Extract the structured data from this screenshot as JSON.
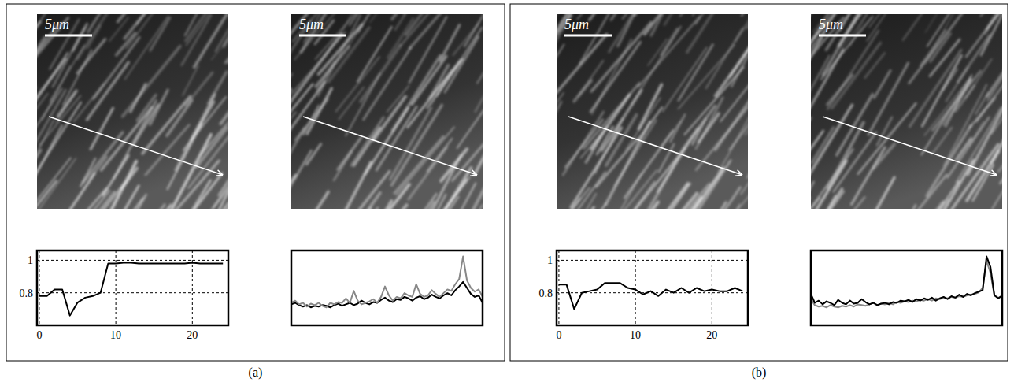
{
  "panels": [
    {
      "label": "(a)",
      "images": [
        {
          "scale_bar": "5μm"
        },
        {
          "scale_bar": "5μm"
        }
      ]
    },
    {
      "label": "(b)",
      "images": [
        {
          "scale_bar": "5μm"
        },
        {
          "scale_bar": "5μm"
        }
      ]
    }
  ],
  "chart_data": [
    {
      "type": "line",
      "xlim": [
        -0.3,
        24.7
      ],
      "ylim": [
        0.6,
        1.06
      ],
      "xticks": [
        0,
        10,
        20
      ],
      "yticks": [
        0.8,
        1
      ],
      "grid": true,
      "x": [
        0,
        1,
        2,
        3,
        4,
        5,
        6,
        7,
        8,
        9,
        10,
        11,
        12,
        13,
        14,
        15,
        16,
        17,
        18,
        19,
        20,
        21,
        22,
        23,
        24
      ],
      "series": [
        {
          "color": "#000000",
          "values": [
            0.78,
            0.78,
            0.82,
            0.82,
            0.66,
            0.74,
            0.77,
            0.78,
            0.8,
            0.98,
            0.98,
            0.985,
            0.985,
            0.98,
            0.98,
            0.98,
            0.98,
            0.98,
            0.98,
            0.98,
            0.985,
            0.98,
            0.98,
            0.98,
            0.98
          ]
        }
      ]
    },
    {
      "type": "line",
      "xlim": [
        0,
        49
      ],
      "ylim": [
        0,
        1
      ],
      "tick_labels": false,
      "grid": false,
      "x": [
        0,
        1,
        2,
        3,
        4,
        5,
        6,
        7,
        8,
        9,
        10,
        11,
        12,
        13,
        14,
        15,
        16,
        17,
        18,
        19,
        20,
        21,
        22,
        23,
        24,
        25,
        26,
        27,
        28,
        29,
        30,
        31,
        32,
        33,
        34,
        35,
        36,
        37,
        38,
        39,
        40,
        41,
        42,
        43,
        44,
        45,
        46,
        47,
        48,
        49
      ],
      "series": [
        {
          "color": "#000000",
          "values": [
            0.28,
            0.3,
            0.27,
            0.25,
            0.27,
            0.24,
            0.26,
            0.25,
            0.27,
            0.26,
            0.24,
            0.27,
            0.29,
            0.26,
            0.28,
            0.3,
            0.27,
            0.29,
            0.33,
            0.3,
            0.28,
            0.31,
            0.3,
            0.34,
            0.37,
            0.33,
            0.31,
            0.35,
            0.34,
            0.38,
            0.36,
            0.33,
            0.37,
            0.39,
            0.35,
            0.37,
            0.41,
            0.38,
            0.36,
            0.4,
            0.43,
            0.4,
            0.47,
            0.52,
            0.58,
            0.5,
            0.42,
            0.38,
            0.4,
            0.3
          ]
        },
        {
          "color": "#888888",
          "values": [
            0.3,
            0.33,
            0.28,
            0.3,
            0.25,
            0.29,
            0.27,
            0.3,
            0.26,
            0.24,
            0.3,
            0.28,
            0.31,
            0.3,
            0.36,
            0.3,
            0.46,
            0.33,
            0.28,
            0.3,
            0.32,
            0.35,
            0.3,
            0.38,
            0.52,
            0.4,
            0.33,
            0.38,
            0.36,
            0.43,
            0.4,
            0.38,
            0.55,
            0.42,
            0.38,
            0.4,
            0.47,
            0.42,
            0.38,
            0.43,
            0.48,
            0.46,
            0.55,
            0.62,
            0.92,
            0.6,
            0.5,
            0.45,
            0.48,
            0.38
          ]
        }
      ]
    },
    {
      "type": "line",
      "xlim": [
        -0.3,
        24.7
      ],
      "ylim": [
        0.6,
        1.06
      ],
      "xticks": [
        0,
        10,
        20
      ],
      "yticks": [
        0.8,
        1
      ],
      "grid": true,
      "x": [
        0,
        1,
        2,
        3,
        4,
        5,
        6,
        7,
        8,
        9,
        10,
        11,
        12,
        13,
        14,
        15,
        16,
        17,
        18,
        19,
        20,
        21,
        22,
        23,
        24
      ],
      "series": [
        {
          "color": "#000000",
          "values": [
            0.85,
            0.85,
            0.7,
            0.8,
            0.81,
            0.82,
            0.86,
            0.86,
            0.86,
            0.83,
            0.82,
            0.79,
            0.81,
            0.78,
            0.82,
            0.8,
            0.83,
            0.8,
            0.83,
            0.81,
            0.82,
            0.81,
            0.81,
            0.83,
            0.81
          ]
        }
      ]
    },
    {
      "type": "line",
      "xlim": [
        0,
        49
      ],
      "ylim": [
        0,
        1
      ],
      "tick_labels": false,
      "grid": false,
      "x": [
        0,
        1,
        2,
        3,
        4,
        5,
        6,
        7,
        8,
        9,
        10,
        11,
        12,
        13,
        14,
        15,
        16,
        17,
        18,
        19,
        20,
        21,
        22,
        23,
        24,
        25,
        26,
        27,
        28,
        29,
        30,
        31,
        32,
        33,
        34,
        35,
        36,
        37,
        38,
        39,
        40,
        41,
        42,
        43,
        44,
        45,
        46,
        47,
        48,
        49
      ],
      "series": [
        {
          "color": "#888888",
          "values": [
            0.35,
            0.27,
            0.25,
            0.26,
            0.24,
            0.27,
            0.25,
            0.24,
            0.26,
            0.25,
            0.27,
            0.25,
            0.28,
            0.27,
            0.26,
            0.28,
            0.3,
            0.27,
            0.29,
            0.28,
            0.3,
            0.28,
            0.31,
            0.3,
            0.32,
            0.31,
            0.33,
            0.32,
            0.34,
            0.33,
            0.35,
            0.33,
            0.36,
            0.35,
            0.37,
            0.36,
            0.38,
            0.37,
            0.39,
            0.38,
            0.4,
            0.41,
            0.42,
            0.44,
            0.5,
            0.86,
            0.7,
            0.4,
            0.37,
            0.38
          ]
        },
        {
          "color": "#000000",
          "values": [
            0.42,
            0.3,
            0.33,
            0.28,
            0.32,
            0.3,
            0.27,
            0.34,
            0.3,
            0.28,
            0.33,
            0.29,
            0.3,
            0.35,
            0.31,
            0.28,
            0.3,
            0.27,
            0.29,
            0.3,
            0.28,
            0.31,
            0.3,
            0.33,
            0.32,
            0.34,
            0.31,
            0.35,
            0.33,
            0.36,
            0.34,
            0.37,
            0.33,
            0.36,
            0.38,
            0.35,
            0.39,
            0.37,
            0.41,
            0.38,
            0.42,
            0.4,
            0.43,
            0.45,
            0.47,
            0.92,
            0.78,
            0.4,
            0.36,
            0.4
          ]
        }
      ]
    }
  ]
}
